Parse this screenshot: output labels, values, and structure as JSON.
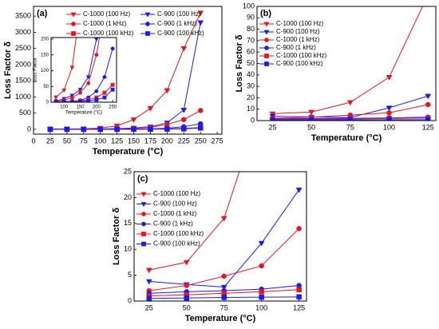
{
  "chart_data": [
    {
      "type": "scatter",
      "panel": "(a)",
      "xlabel": "Temperature (°C)",
      "ylabel": "Loss Factor δ",
      "x": [
        25,
        50,
        75,
        100,
        125,
        150,
        175,
        200,
        225,
        250
      ],
      "xlim": [
        0,
        282
      ],
      "xticks": [
        0,
        25,
        50,
        75,
        100,
        125,
        150,
        175,
        200,
        225,
        250,
        275
      ],
      "ylim": [
        -150,
        3800
      ],
      "yticks": [
        0,
        500,
        1000,
        1500,
        2000,
        2500,
        3000,
        3500
      ],
      "series": [
        {
          "name": "C-1000 (100 Hz)",
          "color": "#e8141e",
          "marker": "triangle-down",
          "values": [
            6,
            7.5,
            16,
            38,
            110,
            300,
            650,
            1200,
            2500,
            3600
          ]
        },
        {
          "name": "C-900 (100 Hz)",
          "color": "#1a1aff",
          "marker": "triangle-down",
          "values": [
            3.8,
            3.2,
            2.7,
            11.2,
            21.5,
            40,
            80,
            200,
            600,
            3300
          ]
        },
        {
          "name": "C-1000 (1 kHz)",
          "color": "#e8141e",
          "marker": "circle",
          "values": [
            2,
            3,
            4.8,
            6.8,
            14,
            30,
            60,
            150,
            300,
            580
          ]
        },
        {
          "name": "C-900 (1 kHz)",
          "color": "#1a1aff",
          "marker": "circle",
          "values": [
            1.5,
            1.8,
            2,
            2.3,
            3,
            6,
            15,
            35,
            80,
            170
          ]
        },
        {
          "name": "C-1000 (100 kHz)",
          "color": "#e8141e",
          "marker": "square",
          "values": [
            1,
            1.2,
            1.5,
            1.8,
            2.2,
            5,
            8,
            15,
            30,
            55
          ]
        },
        {
          "name": "C-900 (100 kHz)",
          "color": "#1a1aff",
          "marker": "square",
          "values": [
            0.5,
            0.6,
            0.7,
            0.75,
            0.8,
            2,
            4,
            8,
            15,
            40
          ]
        }
      ]
    },
    {
      "type": "inset",
      "xlabel": "Temperature (°C)",
      "ylabel": "Loss Factor",
      "xlim": [
        60,
        262
      ],
      "xticks": [
        100,
        150,
        200,
        250
      ],
      "ylim": [
        0,
        205
      ],
      "yticks": [
        0,
        50,
        100,
        150,
        200
      ]
    },
    {
      "type": "scatter",
      "panel": "(b)",
      "xlabel": "Temperature (°C)",
      "ylabel": "Loss Factor δ",
      "xlim": [
        15,
        130
      ],
      "xticks": [
        25,
        50,
        75,
        100,
        125
      ],
      "ylim": [
        0,
        100
      ],
      "yticks": [
        0,
        10,
        20,
        30,
        40,
        50,
        60,
        70,
        80,
        90,
        100
      ]
    },
    {
      "type": "scatter",
      "panel": "(c)",
      "xlabel": "Temperature (°C)",
      "ylabel": "Loss Factor δ",
      "xlim": [
        15,
        130
      ],
      "xticks": [
        25,
        50,
        75,
        100,
        125
      ],
      "ylim": [
        0,
        25
      ],
      "yticks": [
        0,
        5,
        10,
        15,
        20,
        25
      ]
    }
  ]
}
